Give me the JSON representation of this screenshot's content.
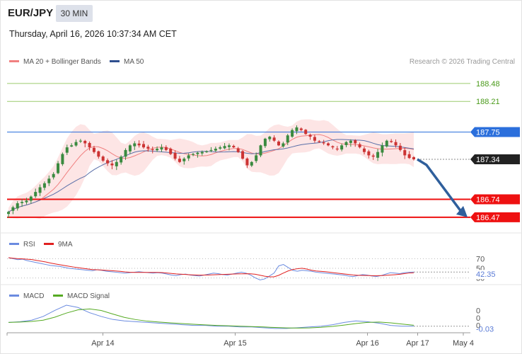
{
  "header": {
    "symbol": "EUR/JPY",
    "timeframe": "30 MIN",
    "datetime": "Thursday, April 16, 2026 10:37:34 AM CET"
  },
  "legend": {
    "ma20_label": "MA 20 + Bollinger Bands",
    "ma50_label": "MA 50",
    "credit": "Research © 2026 Trading Central"
  },
  "colors": {
    "up": "#3a8a3f",
    "down": "#cc3333",
    "ma20": "#f08080",
    "ma50": "#5a6fa8",
    "band_fill": "#fde0e0",
    "resistance": "#2b6fdc",
    "support": "#ee1111",
    "target_line": "#9ccc6e",
    "arrow": "#2f5f9c",
    "rsi": "#6b8be0",
    "rsi_ma": "#e02020",
    "macd": "#6b8be0",
    "macd_signal": "#55aa22",
    "current": "#222222"
  },
  "chart_data": [
    {
      "type": "candlestick",
      "panel": "price",
      "x_labels": [
        "Apr 14",
        "Apr 15",
        "Apr 16",
        "Apr 17",
        "May 4"
      ],
      "y_range": [
        186.33,
        188.67
      ],
      "levels": [
        {
          "value": 188.48,
          "label": "188.48",
          "kind": "target"
        },
        {
          "value": 188.21,
          "label": "188.21",
          "kind": "target"
        },
        {
          "value": 187.75,
          "label": "187.75",
          "kind": "resistance"
        },
        {
          "value": 187.34,
          "label": "187.34",
          "kind": "current"
        },
        {
          "value": 186.74,
          "label": "186.74",
          "kind": "support"
        },
        {
          "value": 186.47,
          "label": "186.47",
          "kind": "support"
        }
      ],
      "forecast": {
        "from": 187.34,
        "to": 186.47,
        "direction": "down"
      },
      "ohlc_close_path": [
        186.55,
        186.62,
        186.68,
        186.7,
        186.72,
        186.78,
        186.85,
        186.92,
        186.98,
        187.05,
        187.12,
        187.28,
        187.42,
        187.52,
        187.55,
        187.6,
        187.62,
        187.58,
        187.52,
        187.45,
        187.38,
        187.32,
        187.28,
        187.25,
        187.3,
        187.38,
        187.48,
        187.55,
        187.58,
        187.55,
        187.52,
        187.5,
        187.48,
        187.5,
        187.52,
        187.48,
        187.42,
        187.35,
        187.3,
        187.35,
        187.4,
        187.42,
        187.44,
        187.45,
        187.46,
        187.48,
        187.5,
        187.52,
        187.54,
        187.55,
        187.52,
        187.45,
        187.35,
        187.25,
        187.3,
        187.4,
        187.55,
        187.65,
        187.68,
        187.62,
        187.55,
        187.58,
        187.7,
        187.78,
        187.82,
        187.78,
        187.72,
        187.68,
        187.62,
        187.6,
        187.58,
        187.55,
        187.52,
        187.5,
        187.55,
        187.6,
        187.62,
        187.58,
        187.52,
        187.45,
        187.4,
        187.38,
        187.45,
        187.55,
        187.62,
        187.6,
        187.55,
        187.48,
        187.4,
        187.36,
        187.34
      ]
    },
    {
      "type": "line",
      "panel": "rsi",
      "series": [
        {
          "name": "RSI"
        },
        {
          "name": "9MA"
        }
      ],
      "y_ticks": [
        "70",
        "50",
        "30"
      ],
      "last_value": "42.35",
      "rsi_values": [
        72,
        70,
        68,
        69,
        66,
        64,
        62,
        60,
        58,
        56,
        55,
        54,
        52,
        50,
        49,
        48,
        47,
        46,
        45,
        47,
        46,
        44,
        43,
        42,
        41,
        40,
        41,
        42,
        43,
        42,
        41,
        40,
        41,
        40,
        38,
        36,
        35,
        37,
        38,
        36,
        35,
        34,
        36,
        38,
        40,
        39,
        37,
        36,
        38,
        40,
        42,
        40,
        36,
        30,
        26,
        28,
        34,
        40,
        55,
        58,
        52,
        46,
        44,
        46,
        45,
        44,
        42,
        41,
        40,
        39,
        38,
        37,
        36,
        34,
        33,
        35,
        37,
        36,
        34,
        33,
        35,
        38,
        41,
        40,
        39,
        41,
        42,
        42.35
      ]
    },
    {
      "type": "line",
      "panel": "macd",
      "series": [
        {
          "name": "MACD"
        },
        {
          "name": "MACD Signal"
        }
      ],
      "y_ticks": [
        "0",
        "0",
        "0"
      ],
      "last_value": "-0.03",
      "macd_values": [
        0.02,
        0.03,
        0.05,
        0.1,
        0.18,
        0.25,
        0.22,
        0.15,
        0.1,
        0.06,
        0.04,
        0.03,
        0.02,
        0.01,
        0.0,
        -0.01,
        -0.02,
        -0.02,
        -0.03,
        -0.03,
        -0.04,
        -0.04,
        -0.05,
        -0.06,
        -0.06,
        -0.05,
        -0.04,
        -0.03,
        -0.01,
        0.02,
        0.04,
        0.03,
        0.01,
        -0.02,
        -0.03,
        -0.03
      ]
    }
  ]
}
